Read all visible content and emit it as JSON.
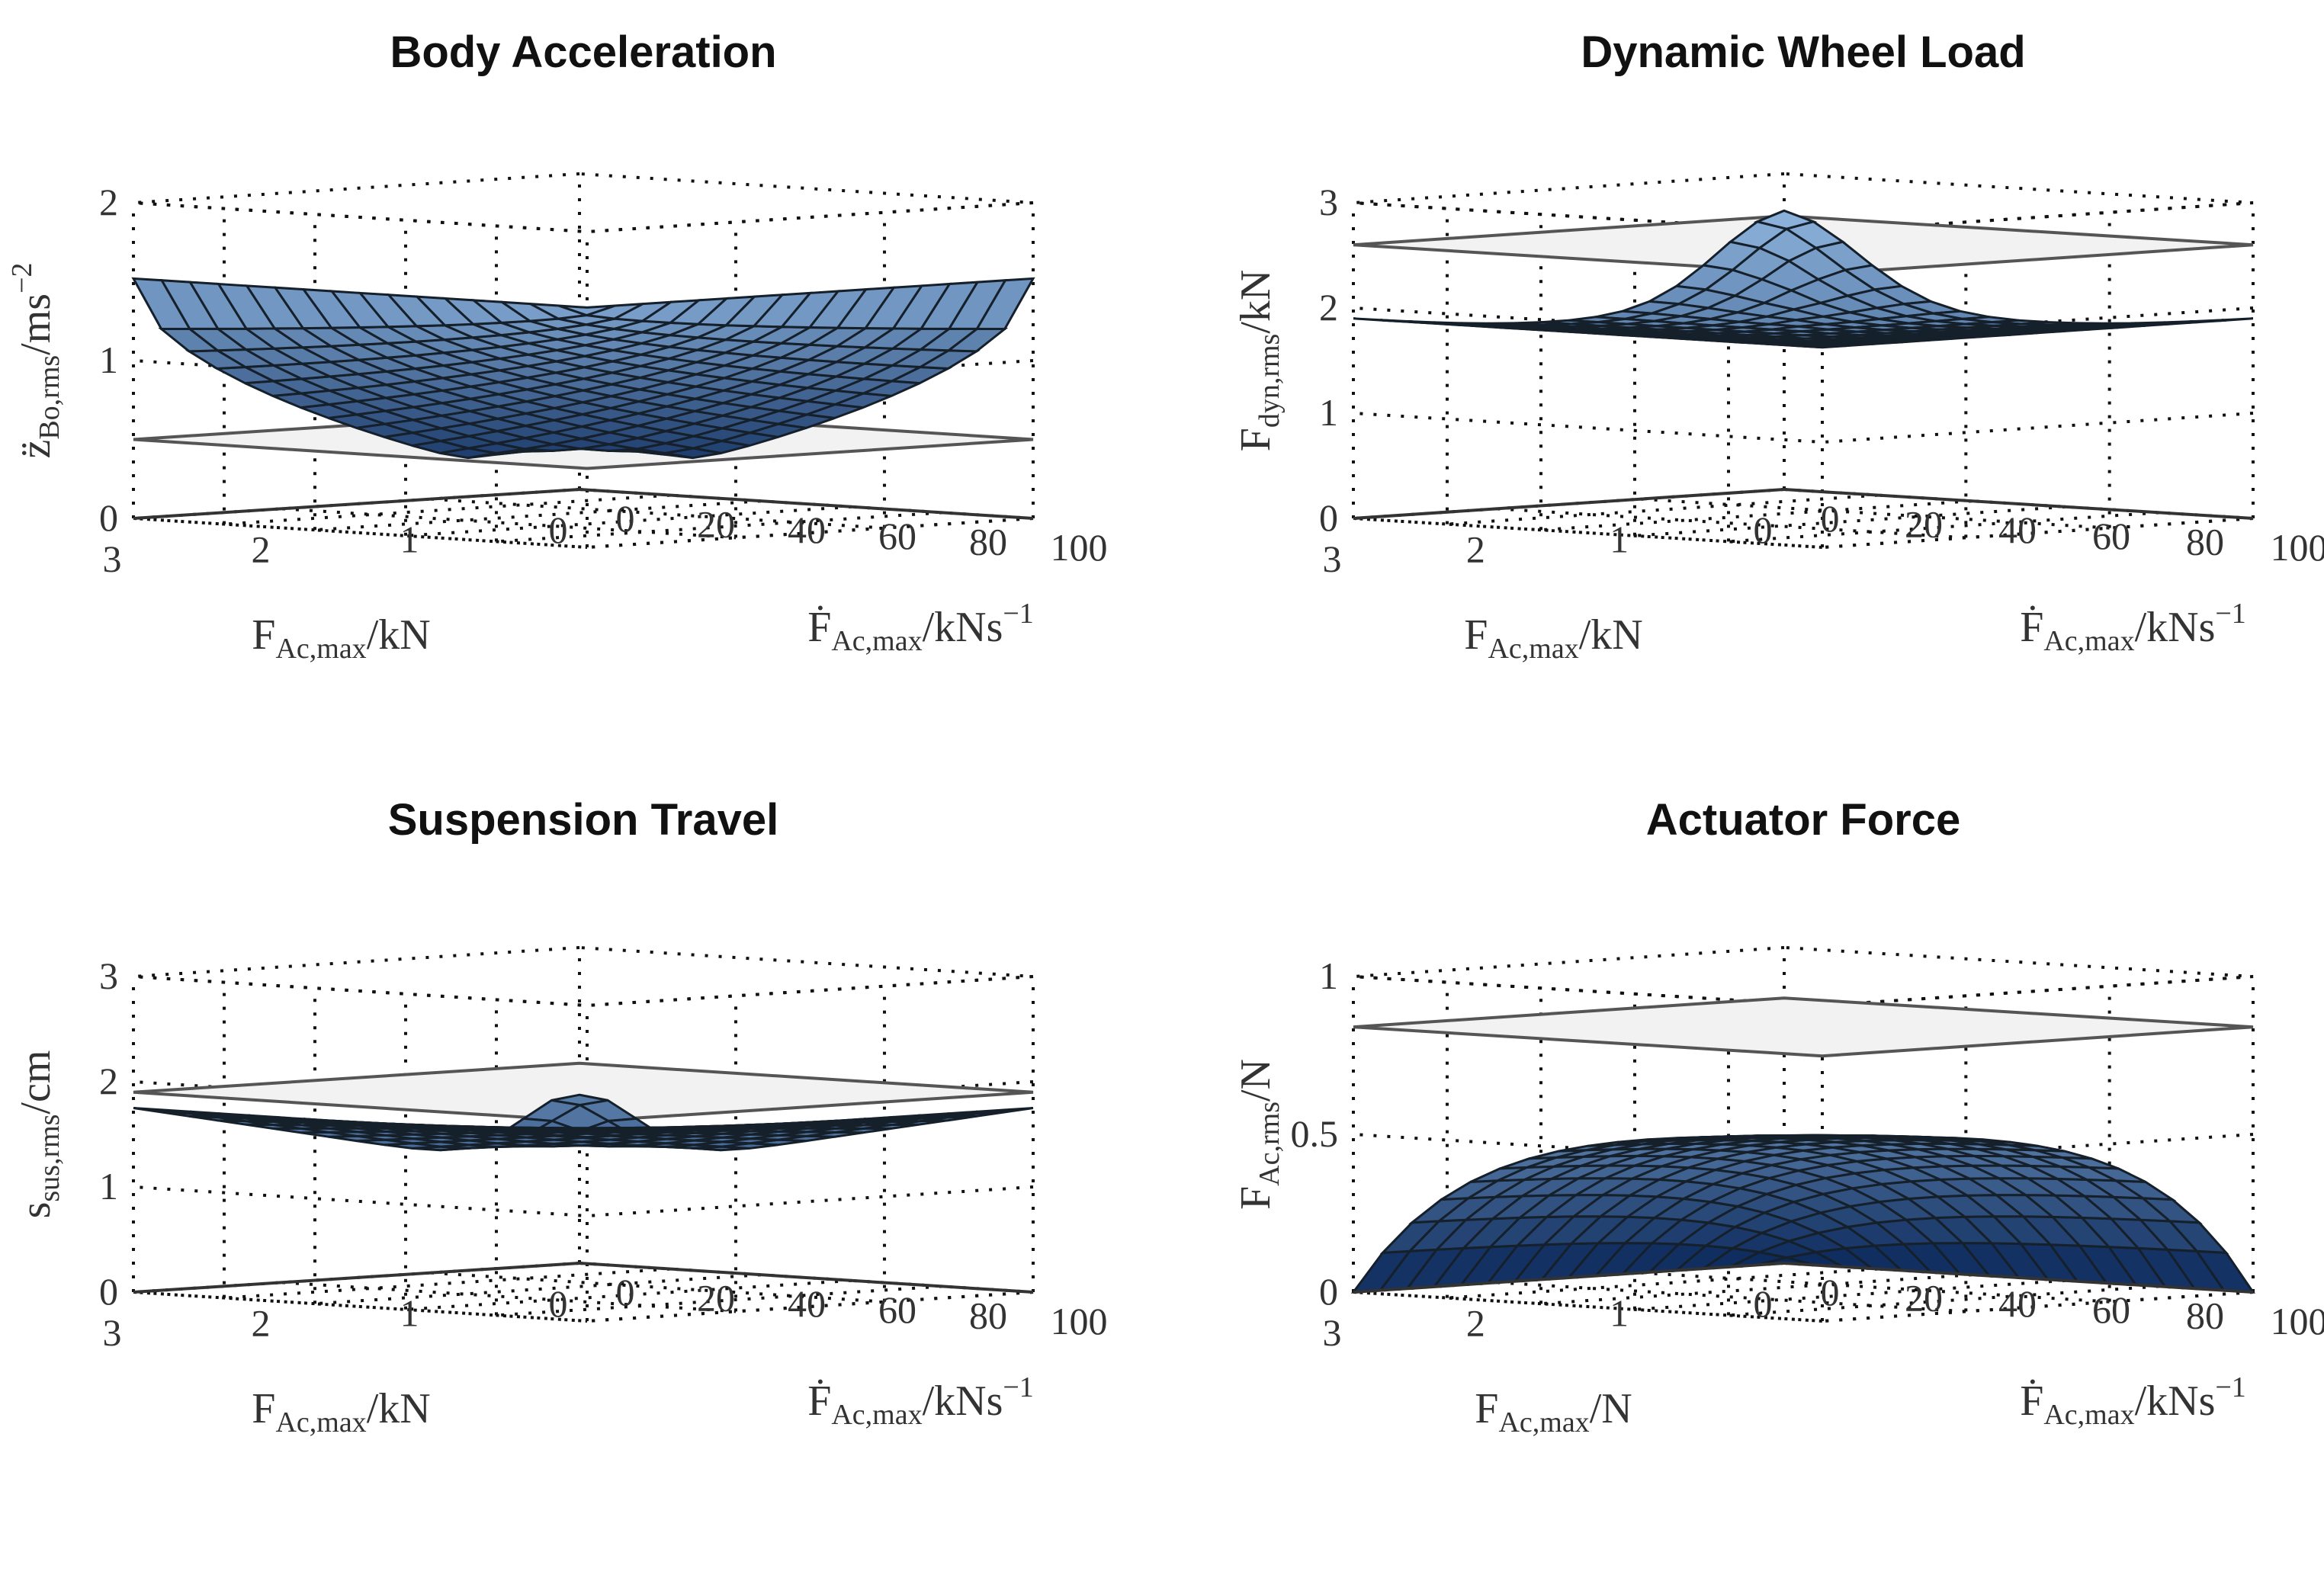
{
  "chart_data": [
    {
      "type": "surface",
      "title": "Body Acceleration",
      "zlabel": {
        "base": "z̈",
        "sub": "Bo,rms",
        "unit": "/ms",
        "sup": "−2"
      },
      "xlabel": {
        "base": "F",
        "sub": "Ac,max",
        "unit": "/kN"
      },
      "ylabel": {
        "base": "Ḟ",
        "sub": "Ac,max",
        "unit": "/kNs",
        "sup": "−1"
      },
      "xlim": [
        0,
        3
      ],
      "ylim": [
        0,
        100
      ],
      "zlim": [
        0,
        2
      ],
      "xticks": [
        "0",
        "1",
        "2",
        "3"
      ],
      "yticks": [
        "0",
        "20",
        "40",
        "60",
        "80",
        "100"
      ],
      "zticks": [
        "0",
        "1",
        "2"
      ],
      "plane_z": 0.5,
      "surface": {
        "kind": "bowl",
        "edge": 1.52,
        "corner": 2.05,
        "min": 0.0,
        "nx": 16,
        "ny": 16
      }
    },
    {
      "type": "surface",
      "title": "Dynamic Wheel Load",
      "zlabel": {
        "base": "F",
        "sub": "dyn,rms",
        "unit": "/kN",
        "sup": ""
      },
      "xlabel": {
        "base": "F",
        "sub": "Ac,max",
        "unit": "/kN"
      },
      "ylabel": {
        "base": "Ḟ",
        "sub": "Ac,max",
        "unit": "/kNs",
        "sup": "−1"
      },
      "xlim": [
        0,
        3
      ],
      "ylim": [
        0,
        100
      ],
      "zlim": [
        0,
        3
      ],
      "xticks": [
        "0",
        "1",
        "2",
        "3"
      ],
      "yticks": [
        "0",
        "20",
        "40",
        "60",
        "80",
        "100"
      ],
      "zticks": [
        "0",
        "1",
        "2",
        "3"
      ],
      "plane_z": 2.6,
      "surface": {
        "kind": "saddle",
        "edge": 1.9,
        "corner": 2.65,
        "dip": 1.7,
        "nx": 16,
        "ny": 16
      }
    },
    {
      "type": "surface",
      "title": "Suspension Travel",
      "zlabel": {
        "base": "s",
        "sub": "sus,rms",
        "unit": "/cm",
        "sup": ""
      },
      "xlabel": {
        "base": "F",
        "sub": "Ac,max",
        "unit": "/kN"
      },
      "ylabel": {
        "base": "Ḟ",
        "sub": "Ac,max",
        "unit": "/kNs",
        "sup": "−1"
      },
      "xlim": [
        0,
        3
      ],
      "ylim": [
        0,
        100
      ],
      "zlim": [
        0,
        3
      ],
      "xticks": [
        "0",
        "1",
        "2",
        "3"
      ],
      "yticks": [
        "0",
        "20",
        "40",
        "60",
        "80",
        "100"
      ],
      "zticks": [
        "0",
        "1",
        "2",
        "3"
      ],
      "plane_z": 1.9,
      "surface": {
        "kind": "travel",
        "edge": 1.75,
        "corner": 2.5,
        "dip": 0.85,
        "nx": 16,
        "ny": 16
      }
    },
    {
      "type": "surface",
      "title": "Actuator Force",
      "zlabel": {
        "base": "F",
        "sub": "Ac,rms",
        "unit": "/N",
        "sup": ""
      },
      "xlabel": {
        "base": "F",
        "sub": "Ac,max",
        "unit": "/N"
      },
      "ylabel": {
        "base": "Ḟ",
        "sub": "Ac,max",
        "unit": "/kNs",
        "sup": "−1"
      },
      "xlim": [
        0,
        3
      ],
      "ylim": [
        0,
        100
      ],
      "zlim": [
        0,
        1
      ],
      "xticks": [
        "0",
        "1",
        "2",
        "3"
      ],
      "yticks": [
        "0",
        "20",
        "40",
        "60",
        "80",
        "100"
      ],
      "zticks": [
        "0",
        "0.5",
        "1"
      ],
      "plane_z": 0.84,
      "surface": {
        "kind": "force",
        "max": 0.6,
        "nx": 16,
        "ny": 16
      }
    }
  ]
}
